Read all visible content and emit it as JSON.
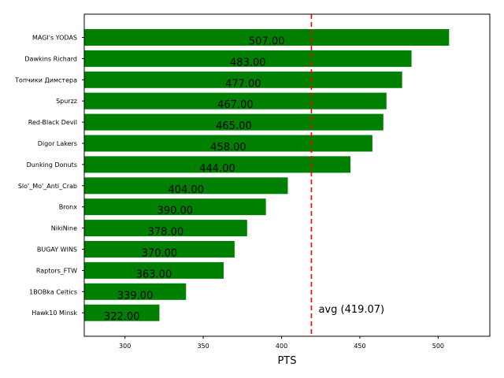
{
  "chart_data": {
    "type": "bar",
    "orientation": "horizontal",
    "categories": [
      "MAGI's YODAS",
      "Dawkins Richard",
      "Топчики Димстера",
      "Spurzz",
      "Red-Black Devil",
      "Digor Lakers",
      "Dunking Donuts",
      "Slo'_Mo'_Anti_Crab",
      "Bronx",
      "NikiNine",
      "BUGAY WINS",
      "Raptors_FTW",
      "1BOBka Celtics",
      "Hawk10 Minsk"
    ],
    "values": [
      507,
      483,
      477,
      467,
      465,
      458,
      444,
      404,
      390,
      378,
      370,
      363,
      339,
      322
    ],
    "value_labels": [
      "507.00",
      "483.00",
      "477.00",
      "467.00",
      "465.00",
      "458.00",
      "444.00",
      "404.00",
      "390.00",
      "378.00",
      "370.00",
      "363.00",
      "339.00",
      "322.00"
    ],
    "xlabel": "PTS",
    "ylabel": "",
    "title": "",
    "xlim": [
      274,
      533
    ],
    "xticks": [
      300,
      350,
      400,
      450,
      500
    ],
    "bar_color": "#008000",
    "reference_line": {
      "value": 419.07,
      "label": "avg (419.07)",
      "color": "#ff0000",
      "style": "dashed"
    },
    "grid": false
  }
}
